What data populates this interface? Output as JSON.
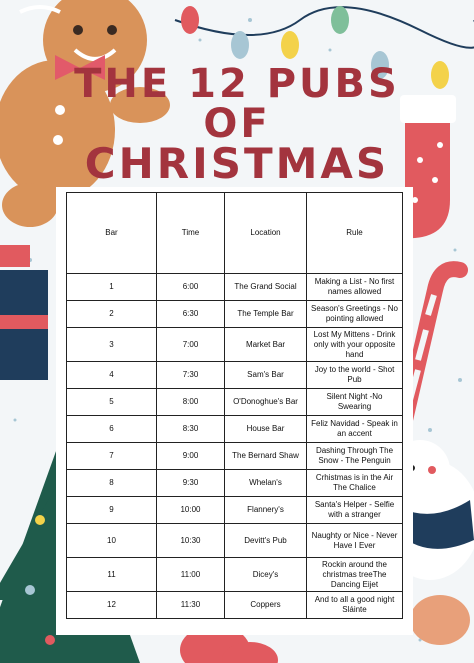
{
  "title": {
    "line1": "THE 12 PUBS",
    "line2": "OF",
    "line3": "CHRISTMAS"
  },
  "table": {
    "headers": [
      "Bar",
      "Time",
      "Location",
      "Rule"
    ],
    "rows": [
      {
        "bar": "1",
        "time": "6:00",
        "location": "The Grand Social",
        "rule": "Making a List - No first names allowed"
      },
      {
        "bar": "2",
        "time": "6:30",
        "location": "The Temple Bar",
        "rule": "Season's Greetings - No pointing allowed"
      },
      {
        "bar": "3",
        "time": "7:00",
        "location": "Market Bar",
        "rule": "Lost My Mittens - Drink only with your opposite hand"
      },
      {
        "bar": "4",
        "time": "7:30",
        "location": "Sam's Bar",
        "rule": "Joy to the world - Shot Pub"
      },
      {
        "bar": "5",
        "time": "8:00",
        "location": "O'Donoghue's Bar",
        "rule": "Silent Night -No Swearing"
      },
      {
        "bar": "6",
        "time": "8:30",
        "location": "House Bar",
        "rule": "Feliz Navidad - Speak in an accent"
      },
      {
        "bar": "7",
        "time": "9:00",
        "location": "The Bernard Shaw",
        "rule": "Dashing Through The Snow - The Penguin"
      },
      {
        "bar": "8",
        "time": "9:30",
        "location": "Whelan's",
        "rule": "Crhistmas is in the Air The Chalice"
      },
      {
        "bar": "9",
        "time": "10:00",
        "location": "Flannery's",
        "rule": "Santa's Helper - Selfie with a stranger"
      },
      {
        "bar": "10",
        "time": "10:30",
        "location": "Devitt's Pub",
        "rule": "Naughty or Nice - Never Have I Ever"
      },
      {
        "bar": "11",
        "time": "11:00",
        "location": "Dicey's",
        "rule": "Rockin around the christmas treeThe Dancing Eijet"
      },
      {
        "bar": "12",
        "time": "11:30",
        "location": "Coppers",
        "rule": "And to all a good night Sláinte"
      }
    ]
  },
  "decorations": {
    "colors": {
      "title_red": "#a3343e",
      "gingerbread": "#d9935a",
      "stocking": "#e15a5f",
      "tree_green": "#1f5b4b",
      "navy": "#1f3d5c",
      "snow_blue": "#a7c6d4"
    },
    "icons": [
      "gingerbread-man-icon",
      "string-lights-icon",
      "stocking-icon",
      "candy-cane-icon",
      "gift-box-icon",
      "christmas-tree-icon",
      "polar-bear-icon",
      "mitten-icon"
    ]
  }
}
